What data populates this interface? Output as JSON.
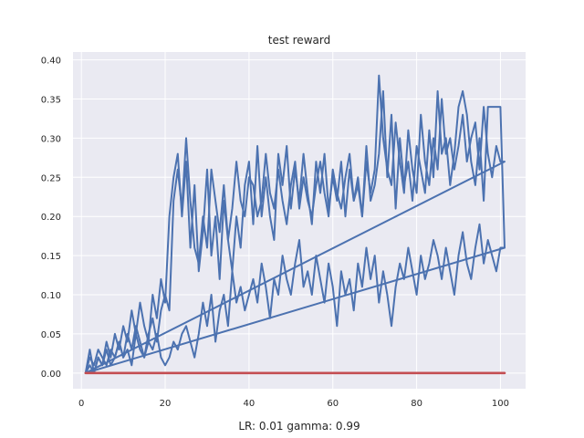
{
  "chart_data": {
    "type": "line",
    "title": "test reward",
    "xlabel": "LR: 0.01 gamma: 0.99",
    "ylabel": "",
    "xlim": [
      -2,
      106
    ],
    "ylim": [
      -0.02,
      0.41
    ],
    "xticks": [
      0,
      20,
      40,
      60,
      80,
      100
    ],
    "yticks": [
      0.0,
      0.05,
      0.1,
      0.15,
      0.2,
      0.25,
      0.3,
      0.35,
      0.4
    ],
    "ytick_labels": [
      "0.00",
      "0.05",
      "0.10",
      "0.15",
      "0.20",
      "0.25",
      "0.30",
      "0.35",
      "0.40"
    ],
    "grid": true,
    "background": "#eaeaf2",
    "series_colors": [
      "#4c72b0",
      "#4c72b0",
      "#4c72b0",
      "#c44e52"
    ],
    "series": [
      {
        "x": [
          1,
          2,
          3,
          4,
          5,
          6,
          7,
          8,
          9,
          10,
          11,
          12,
          13,
          14,
          15,
          16,
          17,
          18,
          19,
          20,
          21,
          22,
          23,
          24,
          25,
          26,
          27,
          28,
          29,
          30,
          31,
          32,
          33,
          34,
          35,
          36,
          37,
          38,
          39,
          40,
          41,
          42,
          43,
          44,
          45,
          46,
          47,
          48,
          49,
          50,
          51,
          52,
          53,
          54,
          55,
          56,
          57,
          58,
          59,
          60,
          61,
          62,
          63,
          64,
          65,
          66,
          67,
          68,
          69,
          70,
          71,
          72,
          73,
          74,
          75,
          76,
          77,
          78,
          79,
          80,
          81,
          82,
          83,
          84,
          85,
          86,
          87,
          88,
          89,
          90,
          91,
          92,
          93,
          94,
          95,
          96,
          97,
          98,
          99,
          100,
          101,
          1
        ],
        "y": [
          0,
          0.02,
          0.01,
          0.03,
          0.02,
          0.01,
          0.03,
          0.02,
          0.04,
          0.02,
          0.05,
          0.03,
          0.06,
          0.04,
          0.02,
          0.05,
          0.07,
          0.04,
          0.08,
          0.1,
          0.08,
          0.22,
          0.26,
          0.21,
          0.3,
          0.22,
          0.16,
          0.14,
          0.2,
          0.16,
          0.26,
          0.22,
          0.18,
          0.24,
          0.17,
          0.21,
          0.27,
          0.22,
          0.2,
          0.25,
          0.24,
          0.2,
          0.22,
          0.28,
          0.23,
          0.21,
          0.26,
          0.22,
          0.19,
          0.24,
          0.27,
          0.21,
          0.25,
          0.22,
          0.2,
          0.24,
          0.27,
          0.23,
          0.2,
          0.26,
          0.23,
          0.21,
          0.25,
          0.28,
          0.22,
          0.24,
          0.2,
          0.27,
          0.23,
          0.26,
          0.38,
          0.3,
          0.26,
          0.24,
          0.32,
          0.27,
          0.23,
          0.31,
          0.26,
          0.23,
          0.33,
          0.27,
          0.24,
          0.3,
          0.26,
          0.35,
          0.28,
          0.3,
          0.26,
          0.29,
          0.33,
          0.27,
          0.3,
          0.32,
          0.26,
          0.34,
          0.28,
          0.25,
          0.29,
          0.27,
          0.27,
          0
        ]
      },
      {
        "x": [
          1,
          2,
          3,
          4,
          5,
          6,
          7,
          8,
          9,
          10,
          11,
          12,
          13,
          14,
          15,
          16,
          17,
          18,
          19,
          20,
          21,
          22,
          23,
          24,
          25,
          26,
          27,
          28,
          29,
          30,
          31,
          32,
          33,
          34,
          35,
          36,
          37,
          38,
          39,
          40,
          41,
          42,
          43,
          44,
          45,
          46,
          47,
          48,
          49,
          50,
          51,
          52,
          53,
          54,
          55,
          56,
          57,
          58,
          59,
          60,
          61,
          62,
          63,
          64,
          65,
          66,
          67,
          68,
          69,
          70,
          71,
          72,
          73,
          74,
          75,
          76,
          77,
          78,
          79,
          80,
          81,
          82,
          83,
          84,
          85,
          86,
          87,
          88,
          89,
          90,
          91,
          92,
          93,
          94,
          95,
          96,
          97,
          98,
          99,
          100,
          101,
          1
        ],
        "y": [
          0,
          0.03,
          0,
          0.02,
          0.01,
          0.04,
          0.02,
          0.05,
          0.03,
          0.06,
          0.04,
          0.08,
          0.05,
          0.09,
          0.06,
          0.04,
          0.1,
          0.07,
          0.12,
          0.09,
          0.2,
          0.25,
          0.28,
          0.2,
          0.27,
          0.16,
          0.24,
          0.13,
          0.18,
          0.26,
          0.15,
          0.2,
          0.12,
          0.22,
          0.17,
          0.13,
          0.2,
          0.16,
          0.24,
          0.27,
          0.19,
          0.29,
          0.2,
          0.25,
          0.2,
          0.17,
          0.28,
          0.24,
          0.29,
          0.21,
          0.26,
          0.22,
          0.28,
          0.23,
          0.19,
          0.27,
          0.23,
          0.28,
          0.21,
          0.25,
          0.22,
          0.27,
          0.2,
          0.26,
          0.22,
          0.25,
          0.2,
          0.29,
          0.22,
          0.24,
          0.28,
          0.36,
          0.25,
          0.33,
          0.21,
          0.3,
          0.24,
          0.27,
          0.22,
          0.29,
          0.26,
          0.23,
          0.31,
          0.25,
          0.36,
          0.28,
          0.3,
          0.24,
          0.28,
          0.34,
          0.36,
          0.33,
          0.27,
          0.24,
          0.3,
          0.22,
          0.34,
          0.34,
          0.34,
          0.34,
          0.16,
          0
        ]
      },
      {
        "x": [
          1,
          2,
          3,
          4,
          5,
          6,
          7,
          8,
          9,
          10,
          11,
          12,
          13,
          14,
          15,
          16,
          17,
          18,
          19,
          20,
          21,
          22,
          23,
          24,
          25,
          26,
          27,
          28,
          29,
          30,
          31,
          32,
          33,
          34,
          35,
          36,
          37,
          38,
          39,
          40,
          41,
          42,
          43,
          44,
          45,
          46,
          47,
          48,
          49,
          50,
          51,
          52,
          53,
          54,
          55,
          56,
          57,
          58,
          59,
          60,
          61,
          62,
          63,
          64,
          65,
          66,
          67,
          68,
          69,
          70,
          71,
          72,
          73,
          74,
          75,
          76,
          77,
          78,
          79,
          80,
          81,
          82,
          83,
          84,
          85,
          86,
          87,
          88,
          89,
          90,
          91,
          92,
          93,
          94,
          95,
          96,
          97,
          98,
          99,
          100,
          101
        ],
        "y": [
          0,
          0.01,
          0,
          0.02,
          0.01,
          0.03,
          0.01,
          0.02,
          0.04,
          0.02,
          0.03,
          0.01,
          0.05,
          0.03,
          0.02,
          0.04,
          0.03,
          0.05,
          0.02,
          0.01,
          0.02,
          0.04,
          0.03,
          0.05,
          0.06,
          0.04,
          0.02,
          0.05,
          0.09,
          0.06,
          0.1,
          0.04,
          0.08,
          0.1,
          0.06,
          0.13,
          0.09,
          0.11,
          0.08,
          0.1,
          0.12,
          0.09,
          0.14,
          0.11,
          0.07,
          0.12,
          0.1,
          0.15,
          0.12,
          0.1,
          0.14,
          0.17,
          0.11,
          0.13,
          0.1,
          0.15,
          0.12,
          0.09,
          0.14,
          0.11,
          0.06,
          0.13,
          0.1,
          0.12,
          0.08,
          0.14,
          0.11,
          0.16,
          0.12,
          0.15,
          0.09,
          0.13,
          0.1,
          0.06,
          0.11,
          0.14,
          0.12,
          0.16,
          0.13,
          0.1,
          0.15,
          0.12,
          0.14,
          0.17,
          0.15,
          0.12,
          0.16,
          0.13,
          0.1,
          0.15,
          0.18,
          0.14,
          0.12,
          0.16,
          0.19,
          0.14,
          0.17,
          0.15,
          0.13,
          0.16,
          0.16
        ]
      },
      {
        "x": [
          1,
          101
        ],
        "y": [
          0,
          0
        ]
      }
    ]
  }
}
